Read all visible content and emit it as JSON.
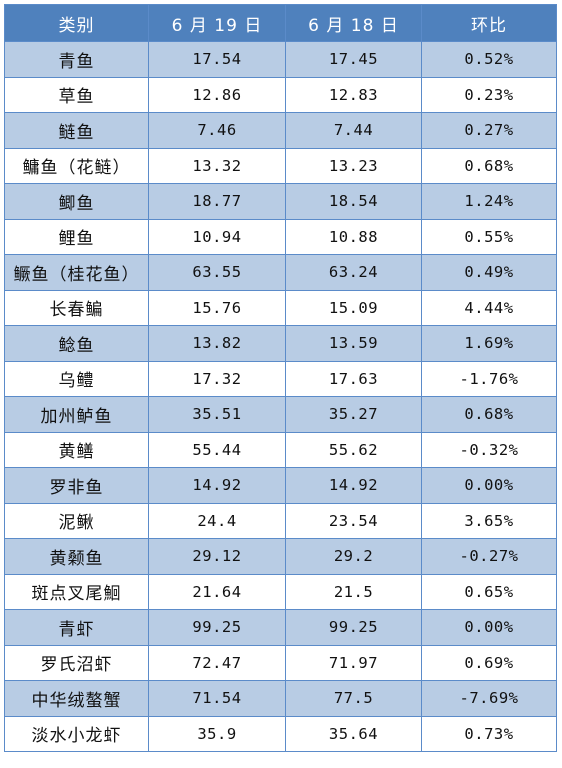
{
  "table": {
    "headers": [
      "类别",
      "6 月 19 日",
      "6 月 18 日",
      "环比"
    ],
    "rows": [
      {
        "category": "青鱼",
        "jun19": "17.54",
        "jun18": "17.45",
        "change": "0.52%"
      },
      {
        "category": "草鱼",
        "jun19": "12.86",
        "jun18": "12.83",
        "change": "0.23%"
      },
      {
        "category": "鲢鱼",
        "jun19": "7.46",
        "jun18": "7.44",
        "change": "0.27%"
      },
      {
        "category": "鳙鱼（花鲢）",
        "jun19": "13.32",
        "jun18": "13.23",
        "change": "0.68%"
      },
      {
        "category": "鲫鱼",
        "jun19": "18.77",
        "jun18": "18.54",
        "change": "1.24%"
      },
      {
        "category": "鲤鱼",
        "jun19": "10.94",
        "jun18": "10.88",
        "change": "0.55%"
      },
      {
        "category": "鳜鱼（桂花鱼）",
        "jun19": "63.55",
        "jun18": "63.24",
        "change": "0.49%"
      },
      {
        "category": "长春鳊",
        "jun19": "15.76",
        "jun18": "15.09",
        "change": "4.44%"
      },
      {
        "category": "鲶鱼",
        "jun19": "13.82",
        "jun18": "13.59",
        "change": "1.69%"
      },
      {
        "category": "乌鳢",
        "jun19": "17.32",
        "jun18": "17.63",
        "change": "-1.76%"
      },
      {
        "category": "加州鲈鱼",
        "jun19": "35.51",
        "jun18": "35.27",
        "change": "0.68%"
      },
      {
        "category": "黄鳝",
        "jun19": "55.44",
        "jun18": "55.62",
        "change": "-0.32%"
      },
      {
        "category": "罗非鱼",
        "jun19": "14.92",
        "jun18": "14.92",
        "change": "0.00%"
      },
      {
        "category": "泥鳅",
        "jun19": "24.4",
        "jun18": "23.54",
        "change": "3.65%"
      },
      {
        "category": "黄颡鱼",
        "jun19": "29.12",
        "jun18": "29.2",
        "change": "-0.27%"
      },
      {
        "category": "斑点叉尾鮰",
        "jun19": "21.64",
        "jun18": "21.5",
        "change": "0.65%"
      },
      {
        "category": "青虾",
        "jun19": "99.25",
        "jun18": "99.25",
        "change": "0.00%"
      },
      {
        "category": "罗氏沼虾",
        "jun19": "72.47",
        "jun18": "71.97",
        "change": "0.69%"
      },
      {
        "category": "中华绒螯蟹",
        "jun19": "71.54",
        "jun18": "77.5",
        "change": "-7.69%"
      },
      {
        "category": "淡水小龙虾",
        "jun19": "35.9",
        "jun18": "35.64",
        "change": "0.73%"
      }
    ]
  },
  "colors": {
    "header_bg": "#4f81bd",
    "header_text": "#ffffff",
    "band_row": "#b8cce4",
    "plain_row": "#ffffff",
    "border": "#5b8bc9"
  }
}
